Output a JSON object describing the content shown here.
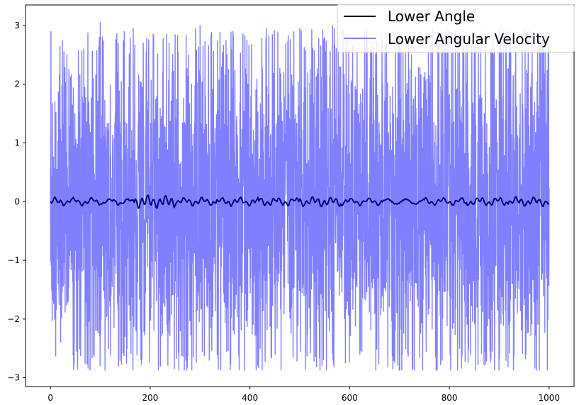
{
  "chart_data": {
    "type": "line",
    "title": "",
    "xlabel": "",
    "ylabel": "",
    "xlim": [
      -50,
      1050
    ],
    "ylim": [
      -3.15,
      3.35
    ],
    "x_ticks": [
      0,
      200,
      400,
      600,
      800,
      1000
    ],
    "y_ticks": [
      -3,
      -2,
      -1,
      0,
      1,
      2,
      3
    ],
    "x_tick_labels": [
      "0",
      "200",
      "400",
      "600",
      "800",
      "1000"
    ],
    "y_tick_labels": [
      "−3",
      "−2",
      "−1",
      "0",
      "1",
      "2",
      "3"
    ],
    "grid": false,
    "legend_position": "top-right",
    "series": [
      {
        "name": "Lower Angle",
        "color": "#000080",
        "legend_color": "#000000",
        "x_range": [
          0,
          1000
        ],
        "oscillation_period": 12,
        "typical_range": [
          -0.12,
          0.12
        ],
        "sample_values": [
          -0.05,
          -0.03,
          0.12,
          0.05,
          -0.06,
          0.06,
          -0.08,
          0.04,
          0.0,
          -0.05,
          0.06,
          -0.07
        ]
      },
      {
        "name": "Lower Angular Velocity",
        "color": "#8080ff",
        "x_range": [
          0,
          1000
        ],
        "typical_range": [
          -2.9,
          3.05
        ],
        "max": 3.05,
        "min": -2.87,
        "peak_values": [
          2.5,
          3.05,
          2.95,
          2.85,
          3.0,
          2.9,
          2.95,
          2.95,
          3.0,
          2.95,
          2.9,
          2.95,
          2.9,
          2.95,
          2.65
        ],
        "trough_values": [
          -2.4,
          -2.6,
          -2.5,
          -2.8,
          -2.65,
          -2.55,
          -2.5,
          -2.65,
          -2.87,
          -2.6,
          -2.85,
          -2.55,
          -2.5,
          -2.55,
          -2.6
        ]
      }
    ]
  }
}
